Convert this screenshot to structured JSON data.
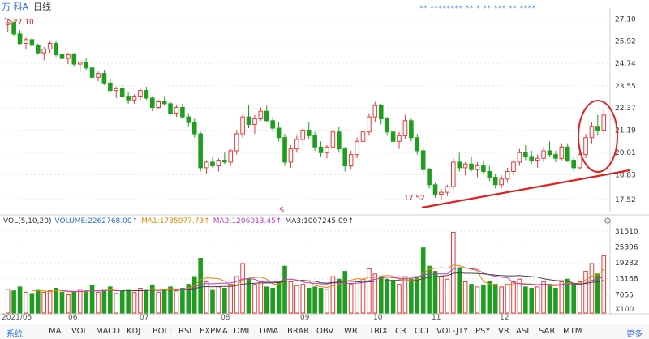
{
  "header": {
    "stock_name": "万 科A",
    "period": "日线",
    "markers": "** ******** ** * ** *** ** ****"
  },
  "price_axis": {
    "ticks": [
      "27.10",
      "25.92",
      "24.74",
      "23.55",
      "22.37",
      "21.19",
      "20.01",
      "18.83",
      "17.52"
    ]
  },
  "annotations": {
    "high_label": "27.10",
    "low_label": "17.52",
    "event_marker": "$"
  },
  "volume": {
    "legend": [
      {
        "text": "VOL(5,10,20)",
        "color": "#333333"
      },
      {
        "text": "VOLUME:2262768.00↑",
        "color": "#2f6fd6"
      },
      {
        "text": "MA1:1735977.73↑",
        "color": "#e08a00"
      },
      {
        "text": "MA2:1206013.45↑",
        "color": "#c239c2"
      },
      {
        "text": "MA3:1007245.09↑",
        "color": "#333333"
      }
    ],
    "ticks": [
      "31510",
      "25396",
      "19282",
      "13168",
      "7055"
    ],
    "unit": "X100"
  },
  "dates": [
    "2021/05",
    "06",
    "07",
    "08",
    "09",
    "10",
    "11",
    "12"
  ],
  "toolbar": {
    "system": "系统",
    "items": [
      "MA",
      "VOL",
      "MACD",
      "KDJ",
      "BOLL",
      "RSI",
      "EXPMA",
      "DMI",
      "DMA",
      "BRAR",
      "OBV",
      "WR",
      "TRIX",
      "CR",
      "CCI",
      "VOL-JTY",
      "PSY",
      "VR",
      "ASI",
      "SAR",
      "MTM"
    ],
    "more": "更多"
  },
  "colors": {
    "up": "#e23b3b",
    "down": "#1e9e1e",
    "ma1": "#e08a00",
    "ma2": "#c239c2",
    "ma3": "#444444",
    "trend": "#e02020"
  },
  "chart_data": {
    "type": "candlestick",
    "y_range": [
      17.0,
      27.5
    ],
    "candles": [
      [
        26.8,
        27.1,
        26.4,
        26.9
      ],
      [
        26.9,
        27.0,
        26.2,
        26.3
      ],
      [
        26.3,
        26.5,
        25.7,
        25.8
      ],
      [
        25.8,
        26.1,
        25.5,
        26.0
      ],
      [
        26.0,
        26.2,
        25.6,
        25.7
      ],
      [
        25.7,
        25.8,
        25.2,
        25.3
      ],
      [
        25.3,
        25.6,
        24.9,
        25.5
      ],
      [
        25.5,
        25.9,
        25.3,
        25.8
      ],
      [
        25.8,
        25.9,
        25.1,
        25.2
      ],
      [
        25.2,
        25.4,
        24.8,
        25.0
      ],
      [
        25.0,
        25.3,
        24.7,
        25.2
      ],
      [
        25.2,
        25.3,
        24.6,
        24.7
      ],
      [
        24.7,
        24.9,
        24.3,
        24.8
      ],
      [
        24.8,
        25.0,
        24.4,
        24.5
      ],
      [
        24.5,
        24.6,
        23.9,
        24.0
      ],
      [
        24.0,
        24.3,
        23.8,
        24.2
      ],
      [
        24.2,
        24.4,
        23.6,
        23.7
      ],
      [
        23.7,
        23.9,
        23.2,
        23.3
      ],
      [
        23.3,
        23.5,
        22.9,
        23.4
      ],
      [
        23.4,
        23.6,
        22.9,
        23.0
      ],
      [
        23.0,
        23.2,
        22.6,
        22.8
      ],
      [
        22.8,
        23.1,
        22.6,
        23.0
      ],
      [
        23.0,
        23.4,
        22.8,
        23.3
      ],
      [
        23.3,
        23.5,
        22.8,
        22.9
      ],
      [
        22.9,
        23.0,
        22.2,
        22.4
      ],
      [
        22.4,
        22.8,
        22.3,
        22.7
      ],
      [
        22.7,
        23.0,
        22.5,
        22.6
      ],
      [
        22.6,
        22.7,
        22.0,
        22.1
      ],
      [
        22.1,
        22.5,
        21.9,
        22.4
      ],
      [
        22.4,
        22.6,
        21.8,
        21.9
      ],
      [
        21.9,
        22.1,
        21.4,
        21.6
      ],
      [
        21.6,
        21.8,
        20.8,
        21.0
      ],
      [
        21.0,
        21.1,
        19.0,
        19.2
      ],
      [
        19.2,
        19.6,
        18.9,
        19.5
      ],
      [
        19.5,
        19.8,
        19.2,
        19.3
      ],
      [
        19.3,
        19.7,
        19.0,
        19.6
      ],
      [
        19.6,
        20.0,
        19.4,
        19.5
      ],
      [
        19.5,
        20.2,
        19.3,
        20.1
      ],
      [
        20.1,
        21.2,
        19.9,
        21.0
      ],
      [
        21.0,
        22.1,
        20.8,
        21.9
      ],
      [
        21.9,
        22.5,
        21.3,
        21.5
      ],
      [
        21.5,
        22.0,
        21.0,
        21.8
      ],
      [
        21.8,
        22.4,
        21.7,
        22.2
      ],
      [
        22.2,
        22.5,
        21.6,
        21.7
      ],
      [
        21.7,
        21.9,
        21.1,
        21.3
      ],
      [
        21.3,
        21.6,
        20.6,
        20.8
      ],
      [
        20.8,
        21.0,
        19.3,
        19.5
      ],
      [
        19.5,
        20.4,
        19.2,
        20.2
      ],
      [
        20.2,
        20.9,
        20.0,
        20.7
      ],
      [
        20.7,
        21.3,
        20.4,
        21.2
      ],
      [
        21.2,
        21.6,
        20.7,
        20.9
      ],
      [
        20.9,
        21.1,
        20.1,
        20.3
      ],
      [
        20.3,
        20.6,
        19.8,
        20.0
      ],
      [
        20.0,
        20.4,
        19.7,
        20.3
      ],
      [
        20.3,
        21.3,
        20.1,
        21.1
      ],
      [
        21.1,
        21.4,
        20.0,
        20.2
      ],
      [
        20.2,
        20.3,
        19.0,
        19.3
      ],
      [
        19.3,
        20.1,
        19.1,
        19.9
      ],
      [
        19.9,
        20.8,
        19.7,
        20.6
      ],
      [
        20.6,
        21.3,
        20.3,
        21.1
      ],
      [
        21.1,
        22.1,
        20.9,
        21.9
      ],
      [
        21.9,
        22.7,
        21.6,
        22.5
      ],
      [
        22.5,
        22.6,
        21.5,
        21.8
      ],
      [
        21.8,
        21.9,
        20.9,
        21.1
      ],
      [
        21.1,
        21.4,
        20.4,
        20.6
      ],
      [
        20.6,
        21.1,
        20.2,
        20.9
      ],
      [
        20.9,
        22.0,
        20.7,
        21.7
      ],
      [
        21.7,
        21.8,
        20.6,
        20.8
      ],
      [
        20.8,
        21.0,
        19.9,
        20.1
      ],
      [
        20.1,
        20.3,
        18.9,
        19.1
      ],
      [
        19.1,
        19.2,
        18.1,
        18.3
      ],
      [
        18.3,
        18.4,
        17.6,
        17.8
      ],
      [
        17.8,
        18.1,
        17.5,
        17.9
      ],
      [
        17.9,
        18.3,
        17.7,
        18.2
      ],
      [
        18.2,
        19.7,
        18.0,
        19.5
      ],
      [
        19.5,
        20.0,
        19.0,
        19.2
      ],
      [
        19.2,
        19.5,
        18.8,
        19.4
      ],
      [
        19.4,
        19.8,
        19.0,
        19.1
      ],
      [
        19.1,
        19.5,
        18.7,
        19.3
      ],
      [
        19.3,
        19.6,
        18.9,
        19.0
      ],
      [
        19.0,
        19.3,
        18.5,
        18.7
      ],
      [
        18.7,
        18.9,
        18.1,
        18.3
      ],
      [
        18.3,
        18.8,
        18.1,
        18.6
      ],
      [
        18.6,
        19.2,
        18.4,
        19.0
      ],
      [
        19.0,
        19.6,
        18.8,
        19.5
      ],
      [
        19.5,
        20.2,
        19.3,
        20.0
      ],
      [
        20.0,
        20.4,
        19.6,
        19.8
      ],
      [
        19.8,
        20.1,
        19.4,
        19.6
      ],
      [
        19.6,
        19.9,
        19.2,
        19.7
      ],
      [
        19.7,
        20.3,
        19.5,
        20.1
      ],
      [
        20.1,
        20.6,
        19.8,
        19.9
      ],
      [
        19.9,
        20.1,
        19.5,
        19.7
      ],
      [
        19.7,
        20.5,
        19.6,
        20.3
      ],
      [
        20.3,
        20.5,
        19.5,
        19.6
      ],
      [
        19.6,
        19.8,
        19.0,
        19.2
      ],
      [
        19.2,
        20.0,
        19.1,
        19.9
      ],
      [
        19.9,
        21.0,
        19.7,
        20.8
      ],
      [
        20.8,
        21.6,
        20.5,
        21.4
      ],
      [
        21.4,
        22.0,
        20.9,
        21.2
      ],
      [
        21.2,
        22.3,
        21.0,
        22.0
      ]
    ],
    "volume_bars": [
      [
        9000,
        1
      ],
      [
        8500,
        0
      ],
      [
        10000,
        0
      ],
      [
        8000,
        1
      ],
      [
        7500,
        0
      ],
      [
        9000,
        0
      ],
      [
        8000,
        1
      ],
      [
        8500,
        1
      ],
      [
        9500,
        0
      ],
      [
        8000,
        0
      ],
      [
        7000,
        1
      ],
      [
        8000,
        0
      ],
      [
        9000,
        1
      ],
      [
        8500,
        0
      ],
      [
        10500,
        0
      ],
      [
        8000,
        1
      ],
      [
        9000,
        0
      ],
      [
        10000,
        0
      ],
      [
        7500,
        1
      ],
      [
        8500,
        0
      ],
      [
        9000,
        0
      ],
      [
        8000,
        1
      ],
      [
        9500,
        1
      ],
      [
        9000,
        0
      ],
      [
        10500,
        0
      ],
      [
        8000,
        1
      ],
      [
        9000,
        0
      ],
      [
        10000,
        0
      ],
      [
        8500,
        1
      ],
      [
        9500,
        0
      ],
      [
        11000,
        0
      ],
      [
        14000,
        0
      ],
      [
        21000,
        0
      ],
      [
        12000,
        1
      ],
      [
        9000,
        0
      ],
      [
        10000,
        1
      ],
      [
        9500,
        0
      ],
      [
        11000,
        1
      ],
      [
        14000,
        1
      ],
      [
        19000,
        1
      ],
      [
        13000,
        0
      ],
      [
        11000,
        1
      ],
      [
        12000,
        1
      ],
      [
        10000,
        0
      ],
      [
        9500,
        0
      ],
      [
        12000,
        0
      ],
      [
        18000,
        0
      ],
      [
        12000,
        1
      ],
      [
        10500,
        1
      ],
      [
        11000,
        1
      ],
      [
        9500,
        0
      ],
      [
        10000,
        0
      ],
      [
        9500,
        0
      ],
      [
        9000,
        1
      ],
      [
        14000,
        1
      ],
      [
        13000,
        0
      ],
      [
        16000,
        0
      ],
      [
        11000,
        1
      ],
      [
        12000,
        1
      ],
      [
        13000,
        1
      ],
      [
        17000,
        1
      ],
      [
        15000,
        1
      ],
      [
        14000,
        0
      ],
      [
        13000,
        0
      ],
      [
        12000,
        0
      ],
      [
        11000,
        1
      ],
      [
        14000,
        1
      ],
      [
        13000,
        0
      ],
      [
        14000,
        0
      ],
      [
        25000,
        0
      ],
      [
        18000,
        0
      ],
      [
        16000,
        0
      ],
      [
        14000,
        1
      ],
      [
        13000,
        1
      ],
      [
        31000,
        1
      ],
      [
        17000,
        0
      ],
      [
        12000,
        1
      ],
      [
        11000,
        0
      ],
      [
        10000,
        1
      ],
      [
        10500,
        0
      ],
      [
        12000,
        0
      ],
      [
        11000,
        0
      ],
      [
        10000,
        1
      ],
      [
        11000,
        1
      ],
      [
        12000,
        1
      ],
      [
        13000,
        1
      ],
      [
        10000,
        0
      ],
      [
        9500,
        0
      ],
      [
        10000,
        1
      ],
      [
        12000,
        1
      ],
      [
        11000,
        0
      ],
      [
        9500,
        0
      ],
      [
        12000,
        1
      ],
      [
        13000,
        0
      ],
      [
        11000,
        0
      ],
      [
        12000,
        1
      ],
      [
        16000,
        1
      ],
      [
        19000,
        1
      ],
      [
        15000,
        0
      ],
      [
        22000,
        1
      ]
    ],
    "volume_range": [
      0,
      33000
    ]
  }
}
